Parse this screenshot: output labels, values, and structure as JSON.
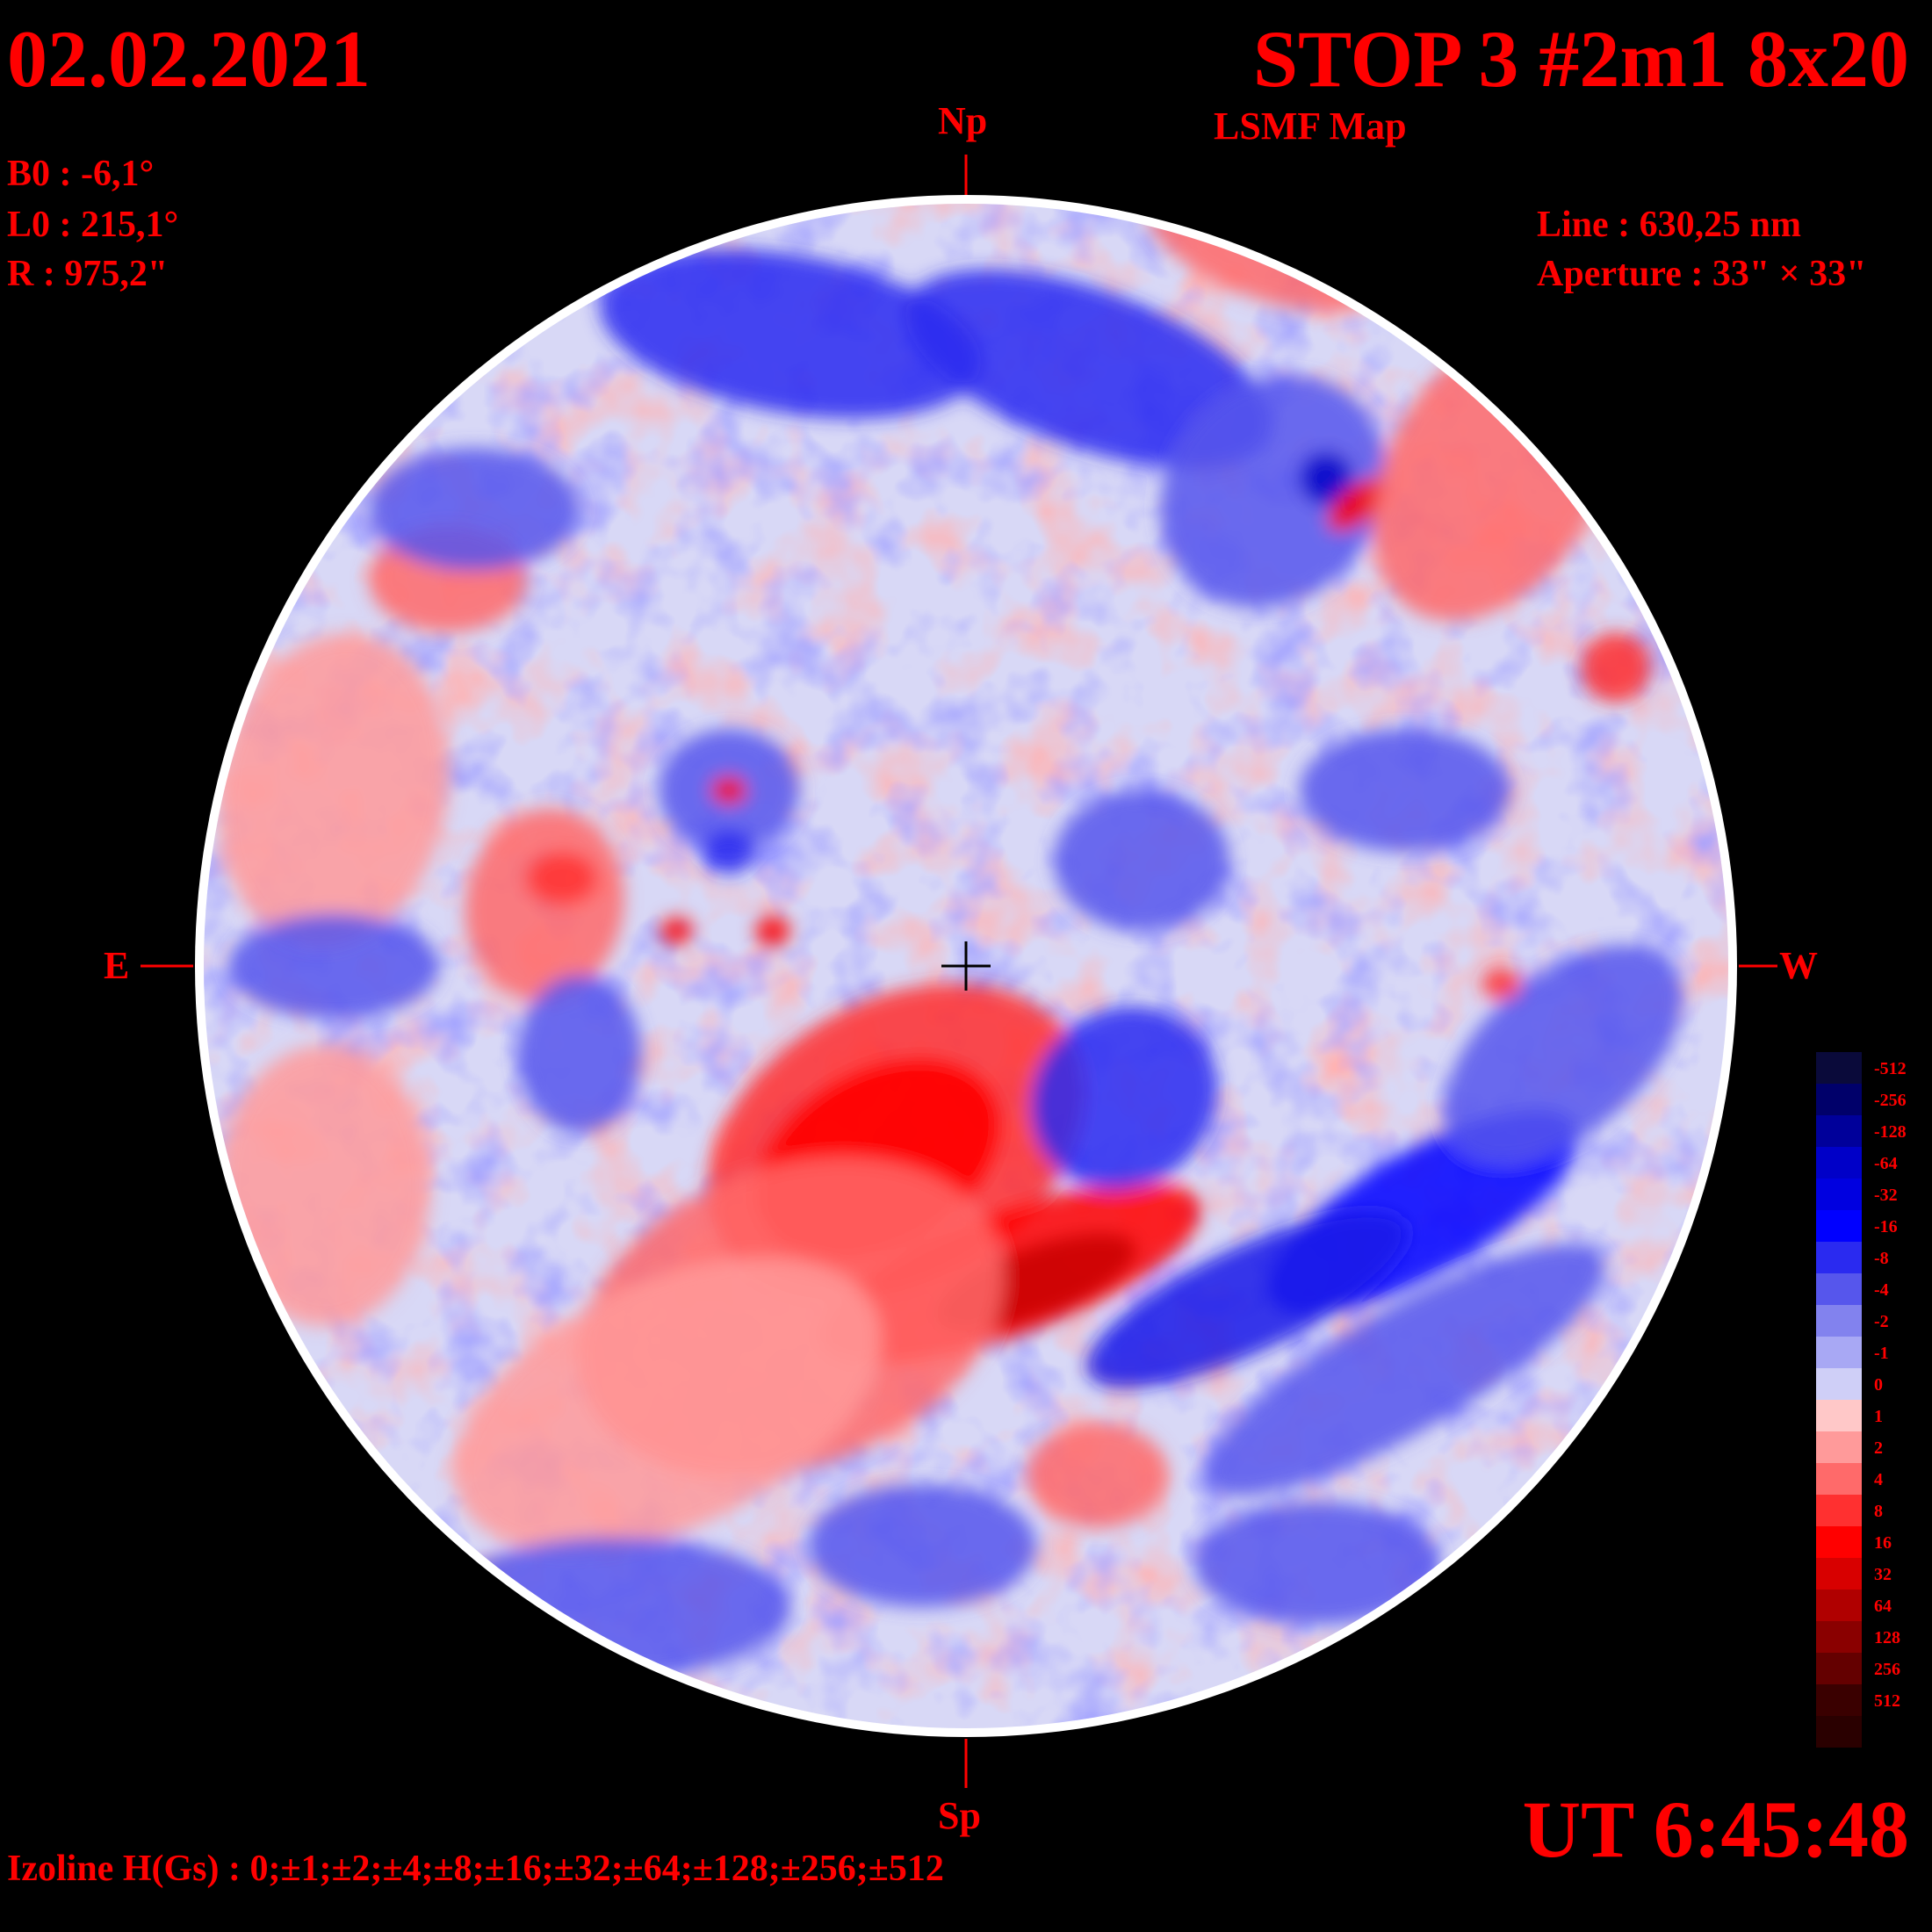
{
  "header": {
    "date": "02.02.2021",
    "title": "STOP 3 #2m1 8x20",
    "subtitle": "LSMF  Map"
  },
  "parameters": {
    "b0": "B0 : -6,1°",
    "l0": "L0 : 215,1°",
    "r": "R  : 975,2\"",
    "line": "Line :  630,25 nm",
    "aperture": "Aperture : 33\" × 33\""
  },
  "directions": {
    "north": "Np",
    "south": "Sp",
    "east": "E",
    "west": "W"
  },
  "time": "UT 6:45:48",
  "izoline": "Izoline H(Gs) : 0;±1;±2;±4;±8;±16;±32;±64;±128;±256;±512",
  "legend": [
    {
      "label": "-512",
      "color": "#0a0a3a"
    },
    {
      "label": "-256",
      "color": "#00006a"
    },
    {
      "label": "-128",
      "color": "#00009a"
    },
    {
      "label": "-64",
      "color": "#0000c8"
    },
    {
      "label": "-32",
      "color": "#0000e0"
    },
    {
      "label": "-16",
      "color": "#0000ff"
    },
    {
      "label": "-8",
      "color": "#2a2af0"
    },
    {
      "label": "-4",
      "color": "#5656ec"
    },
    {
      "label": "-2",
      "color": "#8282ee"
    },
    {
      "label": "-1",
      "color": "#a8a8f4"
    },
    {
      "label": "0",
      "color": "#cfcff7"
    },
    {
      "label": "1",
      "color": "#ffc8c8"
    },
    {
      "label": "2",
      "color": "#ff9a9a"
    },
    {
      "label": "4",
      "color": "#ff6a6a"
    },
    {
      "label": "8",
      "color": "#ff3030"
    },
    {
      "label": "16",
      "color": "#ff0000"
    },
    {
      "label": "32",
      "color": "#d80000"
    },
    {
      "label": "64",
      "color": "#b00000"
    },
    {
      "label": "128",
      "color": "#8a0000"
    },
    {
      "label": "256",
      "color": "#640000"
    },
    {
      "label": "512",
      "color": "#3a0000"
    },
    {
      "label": "",
      "color": "#2a0000"
    }
  ],
  "colors": {
    "text": "#ff0000",
    "background": "#000000",
    "disk_rim": "#ffffff"
  }
}
